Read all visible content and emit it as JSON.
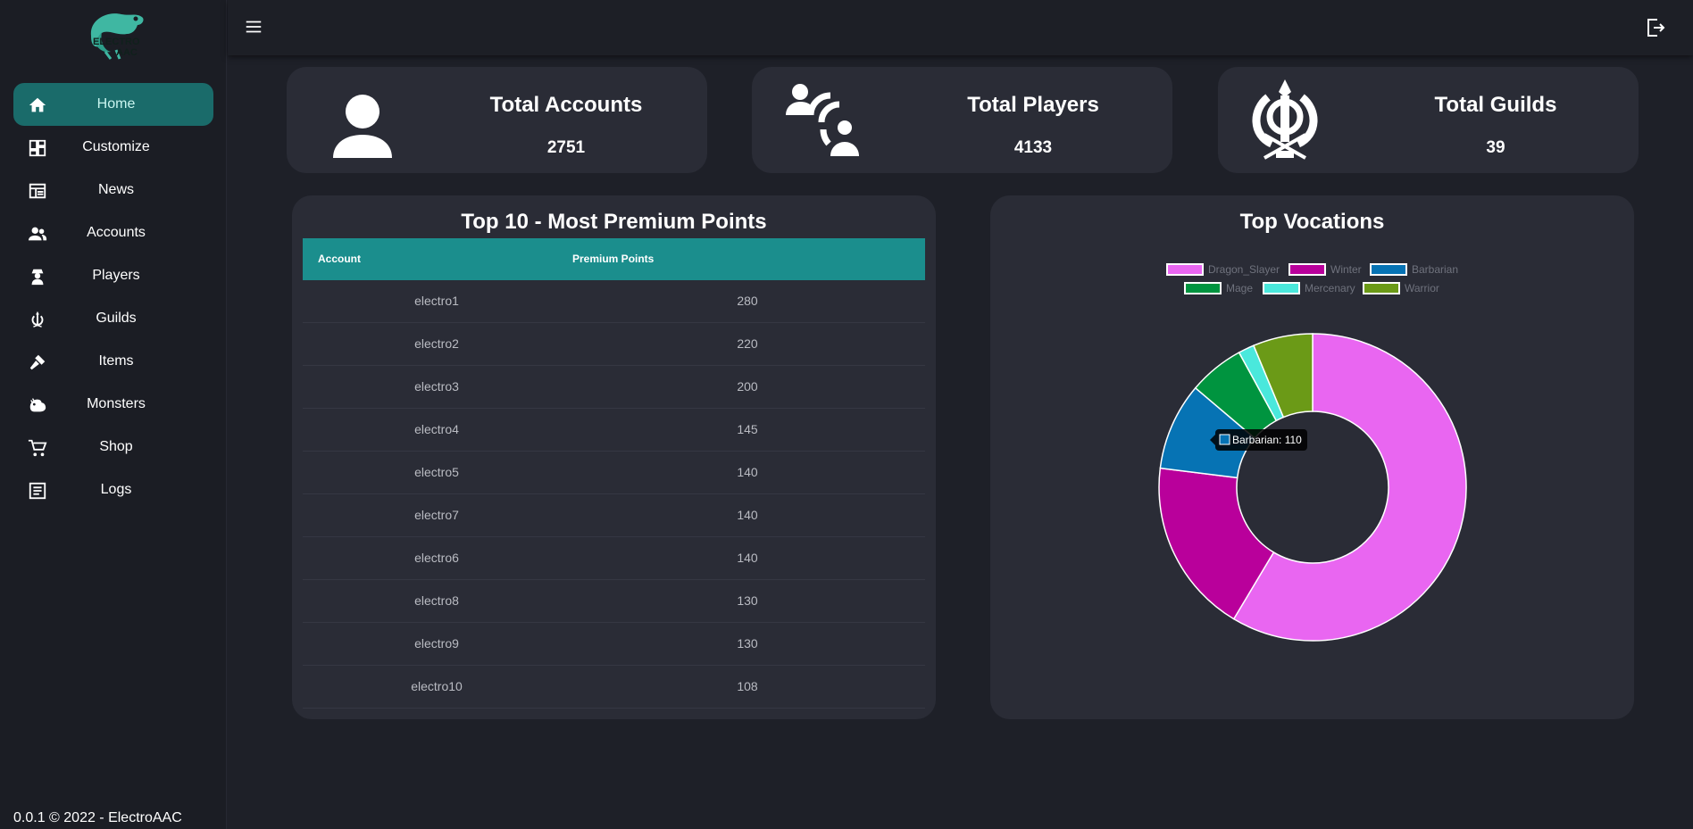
{
  "app": {
    "logo_text_top": "ELECTRO",
    "logo_text_bottom": "AAC",
    "footer": "0.0.1 © 2022 - ElectroAAC"
  },
  "sidebar": {
    "items": [
      {
        "label": "Home",
        "icon": "home-icon",
        "active": true
      },
      {
        "label": "Customize",
        "icon": "dashboard-icon",
        "active": false
      },
      {
        "label": "News",
        "icon": "newspaper-icon",
        "active": false
      },
      {
        "label": "Accounts",
        "icon": "people-icon",
        "active": false
      },
      {
        "label": "Players",
        "icon": "player-icon",
        "active": false
      },
      {
        "label": "Guilds",
        "icon": "guild-emblem-icon",
        "active": false
      },
      {
        "label": "Items",
        "icon": "hammer-icon",
        "active": false
      },
      {
        "label": "Monsters",
        "icon": "monster-icon",
        "active": false
      },
      {
        "label": "Shop",
        "icon": "cart-icon",
        "active": false
      },
      {
        "label": "Logs",
        "icon": "logs-icon",
        "active": false
      }
    ]
  },
  "stats": {
    "accounts": {
      "title": "Total Accounts",
      "value": "2751"
    },
    "players": {
      "title": "Total Players",
      "value": "4133"
    },
    "guilds": {
      "title": "Total Guilds",
      "value": "39"
    }
  },
  "premium_table": {
    "title": "Top 10 - Most Premium Points",
    "headers": [
      "Account",
      "Premium Points"
    ],
    "rows": [
      [
        "electro1",
        "280"
      ],
      [
        "electro2",
        "220"
      ],
      [
        "electro3",
        "200"
      ],
      [
        "electro4",
        "145"
      ],
      [
        "electro5",
        "140"
      ],
      [
        "electro7",
        "140"
      ],
      [
        "electro6",
        "140"
      ],
      [
        "electro8",
        "130"
      ],
      [
        "electro9",
        "130"
      ],
      [
        "electro10",
        "108"
      ]
    ]
  },
  "colors": {
    "accent": "#1b8e8d",
    "active_nav": "#1a6b6a",
    "card_bg": "#2a2c36",
    "page_bg": "#1e2028"
  },
  "chart_data": {
    "type": "pie",
    "title": "Top Vocations",
    "legend_position": "top",
    "categories": [
      "Dragon_Slayer",
      "Winter",
      "Barbarian",
      "Mage",
      "Mercenary",
      "Warrior"
    ],
    "values": [
      700,
      220,
      110,
      70,
      20,
      75
    ],
    "colors": [
      "#e966f1",
      "#b9009b",
      "#0673b4",
      "#00943f",
      "#4ae8dc",
      "#6b9a17"
    ],
    "tooltip": "Barbarian: 110"
  }
}
